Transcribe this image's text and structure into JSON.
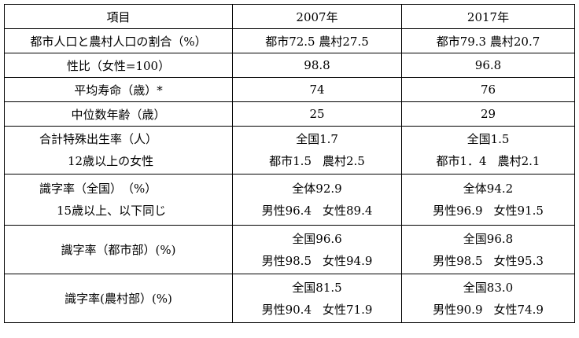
{
  "table": {
    "header": [
      "項目",
      "2007年",
      "2017年"
    ],
    "rows": [
      {
        "item": "都市人口と農村人口の割合（%）",
        "y2007": "都市72.5 農村27.5",
        "y2017": "都市79.3 農村20.7"
      },
      {
        "item": "性比（女性=100）",
        "y2007": "98.8",
        "y2017": "96.8"
      },
      {
        "item": "平均寿命（歳）*",
        "y2007": "74",
        "y2017": "76"
      },
      {
        "item": "中位数年齢（歳）",
        "y2007": "25",
        "y2017": "29"
      },
      {
        "item_line1": "合計特殊出生率（人）",
        "item_line2": "12歳以上の女性",
        "y2007_line1": "全国1.7",
        "y2007_line2a": "都市1.5",
        "y2007_line2b": "農村2.5",
        "y2017_line1": "全国1.5",
        "y2017_line2a": "都市1．4",
        "y2017_line2b": "農村2.1"
      },
      {
        "item_line1": "識字率（全国）　（%）",
        "item_line2": "15歳以上、以下同じ",
        "y2007_line1": "全体92.9",
        "y2007_line2a": "男性96.4",
        "y2007_line2b": "女性89.4",
        "y2017_line1": "全体94.2",
        "y2017_line2a": "男性96.9",
        "y2017_line2b": "女性91.5"
      },
      {
        "item": "識字率（都市部）(%)",
        "y2007_line1": "全国96.6",
        "y2007_line2a": "男性98.5",
        "y2007_line2b": "女性94.9",
        "y2017_line1": "全国96.8",
        "y2017_line2a": "男性98.5",
        "y2017_line2b": "女性95.3"
      },
      {
        "item": "識字率(農村部）(%)",
        "y2007_line1": "全国81.5",
        "y2007_line2a": "男性90.4",
        "y2007_line2b": "女性71.9",
        "y2017_line1": "全国83.0",
        "y2017_line2a": "男性90.9",
        "y2017_line2b": "女性74.9"
      }
    ]
  }
}
